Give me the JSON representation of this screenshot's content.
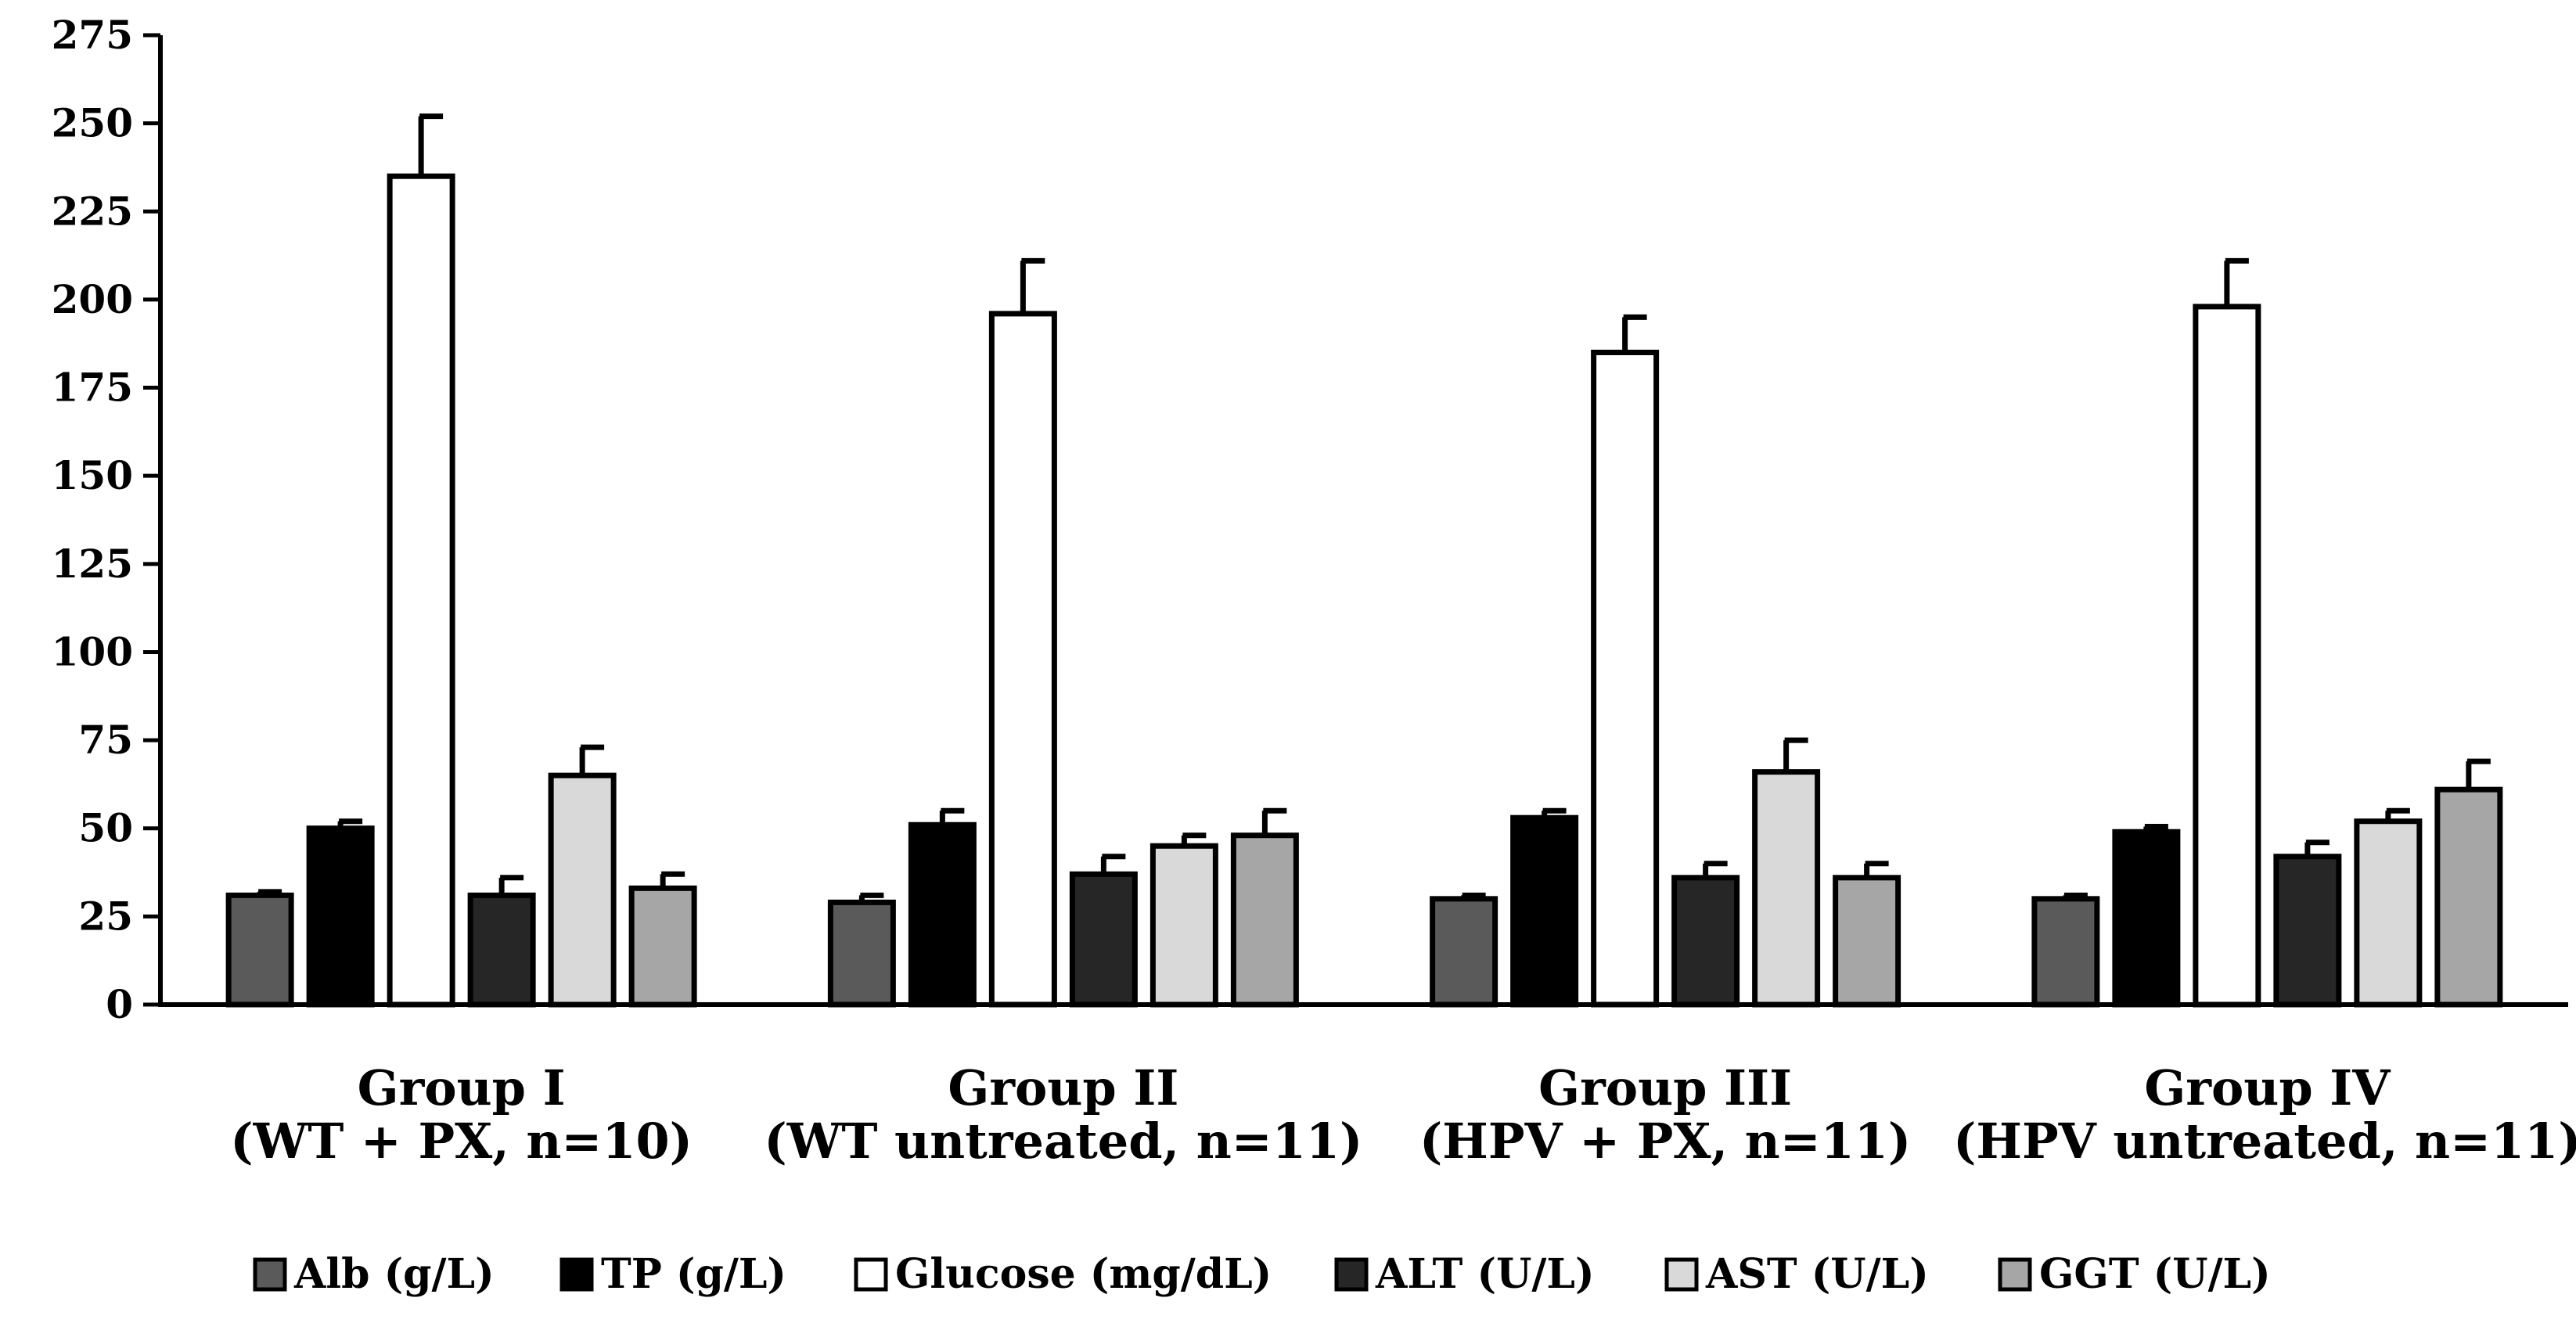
{
  "chart_data": {
    "type": "bar",
    "title": "",
    "xlabel": "",
    "ylabel": "",
    "ylim": [
      0,
      275
    ],
    "yticks": [
      0,
      25,
      50,
      75,
      100,
      125,
      150,
      175,
      200,
      225,
      250,
      275
    ],
    "grid": false,
    "legend_position": "bottom",
    "categories": [
      [
        "Group I",
        "(WT + PX, n=10)"
      ],
      [
        "Group II",
        "(WT untreated, n=11)"
      ],
      [
        "Group III",
        "(HPV + PX, n=11)"
      ],
      [
        "Group IV",
        "(HPV untreated, n=11)"
      ]
    ],
    "series": [
      {
        "name": "Alb (g/L)",
        "color": "#5a5a5a",
        "values": [
          31,
          29,
          30,
          30
        ],
        "errors": [
          1,
          2,
          1,
          1
        ]
      },
      {
        "name": "TP (g/L)",
        "color": "#000000",
        "values": [
          50,
          51,
          53,
          49
        ],
        "errors": [
          2,
          4,
          2,
          1.5
        ]
      },
      {
        "name": "Glucose (mg/dL)",
        "color": "#ffffff",
        "values": [
          235,
          196,
          185,
          198
        ],
        "errors": [
          17,
          15,
          10,
          13
        ]
      },
      {
        "name": "ALT (U/L)",
        "color": "#262626",
        "values": [
          31,
          37,
          36,
          42
        ],
        "errors": [
          5,
          5,
          4,
          4
        ]
      },
      {
        "name": "AST (U/L)",
        "color": "#d9d9d9",
        "values": [
          65,
          45,
          66,
          52
        ],
        "errors": [
          8,
          3,
          9,
          3
        ]
      },
      {
        "name": "GGT (U/L)",
        "color": "#a6a6a6",
        "values": [
          33,
          48,
          36,
          61
        ],
        "errors": [
          4,
          7,
          4,
          8
        ]
      }
    ]
  }
}
